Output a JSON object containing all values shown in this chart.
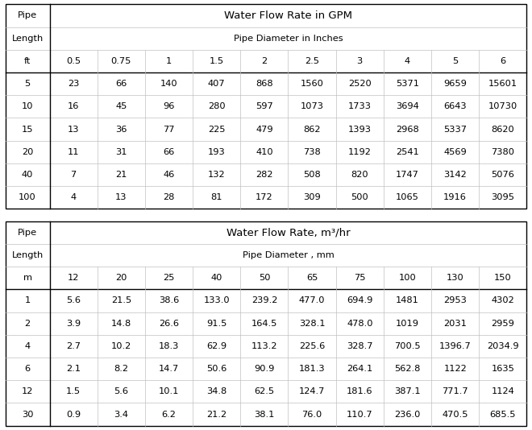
{
  "table1": {
    "title": "Water Flow Rate in GPM",
    "subtitle": "Pipe Diameter in Inches",
    "col1_header": "Pipe",
    "col2_header": "Length",
    "col3_header": "ft",
    "diameters": [
      "0.5",
      "0.75",
      "1",
      "1.5",
      "2",
      "2.5",
      "3",
      "4",
      "5",
      "6"
    ],
    "lengths": [
      "5",
      "10",
      "15",
      "20",
      "40",
      "100"
    ],
    "data": [
      [
        "23",
        "66",
        "140",
        "407",
        "868",
        "1560",
        "2520",
        "5371",
        "9659",
        "15601"
      ],
      [
        "16",
        "45",
        "96",
        "280",
        "597",
        "1073",
        "1733",
        "3694",
        "6643",
        "10730"
      ],
      [
        "13",
        "36",
        "77",
        "225",
        "479",
        "862",
        "1393",
        "2968",
        "5337",
        "8620"
      ],
      [
        "11",
        "31",
        "66",
        "193",
        "410",
        "738",
        "1192",
        "2541",
        "4569",
        "7380"
      ],
      [
        "7",
        "21",
        "46",
        "132",
        "282",
        "508",
        "820",
        "1747",
        "3142",
        "5076"
      ],
      [
        "4",
        "13",
        "28",
        "81",
        "172",
        "309",
        "500",
        "1065",
        "1916",
        "3095"
      ]
    ]
  },
  "table2": {
    "title": "Water Flow Rate, m³/hr",
    "subtitle": "Pipe Diameter , mm",
    "col1_header": "Pipe",
    "col2_header": "Length",
    "col3_header": "m",
    "diameters": [
      "12",
      "20",
      "25",
      "40",
      "50",
      "65",
      "75",
      "100",
      "130",
      "150"
    ],
    "lengths": [
      "1",
      "2",
      "4",
      "6",
      "12",
      "30"
    ],
    "data": [
      [
        "5.6",
        "21.5",
        "38.6",
        "133.0",
        "239.2",
        "477.0",
        "694.9",
        "1481",
        "2953",
        "4302"
      ],
      [
        "3.9",
        "14.8",
        "26.6",
        "91.5",
        "164.5",
        "328.1",
        "478.0",
        "1019",
        "2031",
        "2959"
      ],
      [
        "2.7",
        "10.2",
        "18.3",
        "62.9",
        "113.2",
        "225.6",
        "328.7",
        "700.5",
        "1396.7",
        "2034.9"
      ],
      [
        "2.1",
        "8.2",
        "14.7",
        "50.6",
        "90.9",
        "181.3",
        "264.1",
        "562.8",
        "1122",
        "1635"
      ],
      [
        "1.5",
        "5.6",
        "10.1",
        "34.8",
        "62.5",
        "124.7",
        "181.6",
        "387.1",
        "771.7",
        "1124"
      ],
      [
        "0.9",
        "3.4",
        "6.2",
        "21.2",
        "38.1",
        "76.0",
        "110.7",
        "236.0",
        "470.5",
        "685.5"
      ]
    ]
  },
  "bg_color": "#ffffff",
  "border_color": "#000000",
  "text_color": "#000000",
  "font_size": 8.2,
  "title_font_size": 9.5,
  "line_color_inner": "#c0c0c0",
  "line_color_outer": "#000000"
}
